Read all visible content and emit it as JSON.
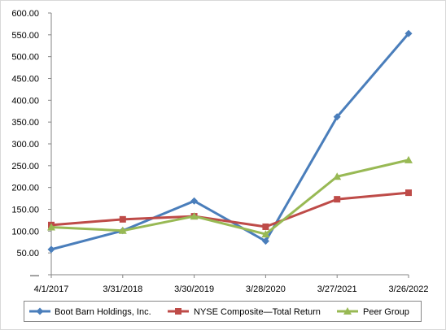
{
  "chart_data": {
    "type": "line",
    "title": "",
    "xlabel": "",
    "ylabel": "",
    "categories": [
      "4/1/2017",
      "3/31/2018",
      "3/30/2019",
      "3/28/2020",
      "3/27/2021",
      "3/26/2022"
    ],
    "y_ticks": [
      "—",
      "50.00",
      "100.00",
      "150.00",
      "200.00",
      "250.00",
      "300.00",
      "350.00",
      "400.00",
      "450.00",
      "500.00",
      "550.00",
      "600.00"
    ],
    "ylim": [
      0,
      600
    ],
    "grid": false,
    "legend_position": "bottom",
    "series": [
      {
        "name": "Boot Barn Holdings, Inc.",
        "color": "#4a7ebb",
        "marker": "diamond",
        "values": [
          58,
          101,
          169,
          77,
          362,
          553
        ]
      },
      {
        "name": "NYSE Composite—Total Return",
        "color": "#be4b48",
        "marker": "square",
        "values": [
          114,
          127,
          134,
          110,
          173,
          188
        ]
      },
      {
        "name": "Peer Group",
        "color": "#98b954",
        "marker": "triangle",
        "values": [
          109,
          101,
          134,
          93,
          225,
          263
        ]
      }
    ]
  }
}
